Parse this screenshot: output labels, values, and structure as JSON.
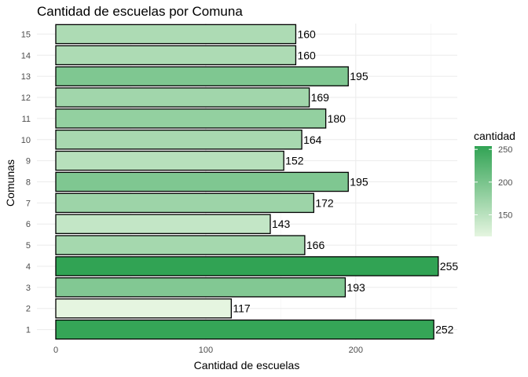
{
  "chart_data": {
    "type": "bar",
    "orientation": "horizontal",
    "title": "Cantidad de escuelas por Comuna",
    "xlabel": "Cantidad de escuelas",
    "ylabel": "Comunas",
    "categories": [
      "1",
      "2",
      "3",
      "4",
      "5",
      "6",
      "7",
      "8",
      "9",
      "10",
      "11",
      "12",
      "13",
      "14",
      "15"
    ],
    "values": [
      252,
      117,
      193,
      255,
      166,
      143,
      172,
      195,
      152,
      164,
      180,
      169,
      195,
      160,
      160
    ],
    "xlim": [
      0,
      270
    ],
    "x_ticks": [
      0,
      100,
      200
    ],
    "grid": true,
    "legend": {
      "title": "cantidad",
      "placement": "right",
      "ticks": [
        150,
        200,
        250
      ],
      "range": [
        117,
        255
      ],
      "color_low": "#e5f5e0",
      "color_high": "#31a354"
    }
  }
}
